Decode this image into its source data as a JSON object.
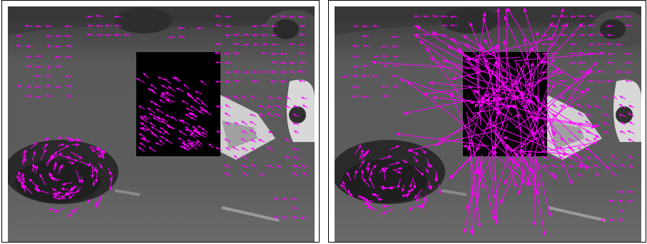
{
  "figure": {
    "panels": [
      {
        "id": "left",
        "description_key": "sparse-flow"
      },
      {
        "id": "right",
        "description_key": "dense-noisy-flow"
      }
    ]
  },
  "colors": {
    "arrow": "#ff00ff",
    "occluder": "#000000",
    "road": "#5e5e5e",
    "background_top": "#3c3c3c"
  }
}
